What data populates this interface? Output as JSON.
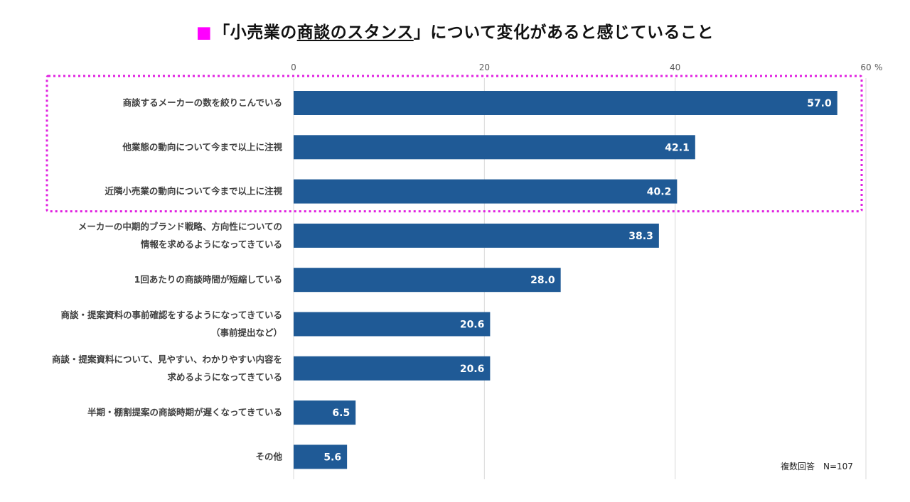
{
  "title": {
    "square": "■",
    "prefix": "「小売業の",
    "underlined": "商談のスタンス",
    "suffix": "」について変化があると感じていること"
  },
  "note": "複数回答　N=107",
  "colors": {
    "bar": "#1f5a96",
    "highlight_border": "#e020e0",
    "grid": "#d9d9d9",
    "title_square": "#ff00ff"
  },
  "chart_data": {
    "type": "bar",
    "orientation": "horizontal",
    "x_unit": "%",
    "xlim": [
      0,
      60
    ],
    "xticks": [
      0,
      20,
      40,
      60
    ],
    "grid": true,
    "categories": [
      [
        "商談するメーカーの数を絞りこんでいる"
      ],
      [
        "他業態の動向について今まで以上に注視"
      ],
      [
        "近隣小売業の動向について今まで以上に注視"
      ],
      [
        "メーカーの中期的ブランド戦略、方向性についての",
        "情報を求めるようになってきている"
      ],
      [
        "1回あたりの商談時間が短縮している"
      ],
      [
        "商談・提案資料の事前確認をするようになってきている",
        "（事前提出など）"
      ],
      [
        "商談・提案資料について、見やすい、わかりやすい内容を",
        "求めるようになってきている"
      ],
      [
        "半期・棚割提案の商談時期が遅くなってきている"
      ],
      [
        "その他"
      ]
    ],
    "values": [
      57.0,
      42.1,
      40.2,
      38.3,
      28.0,
      20.6,
      20.6,
      6.5,
      5.6
    ],
    "value_labels": [
      "57.0",
      "42.1",
      "40.2",
      "38.3",
      "28.0",
      "20.6",
      "20.6",
      "6.5",
      "5.6"
    ],
    "highlighted_categories": [
      0,
      1,
      2
    ]
  }
}
